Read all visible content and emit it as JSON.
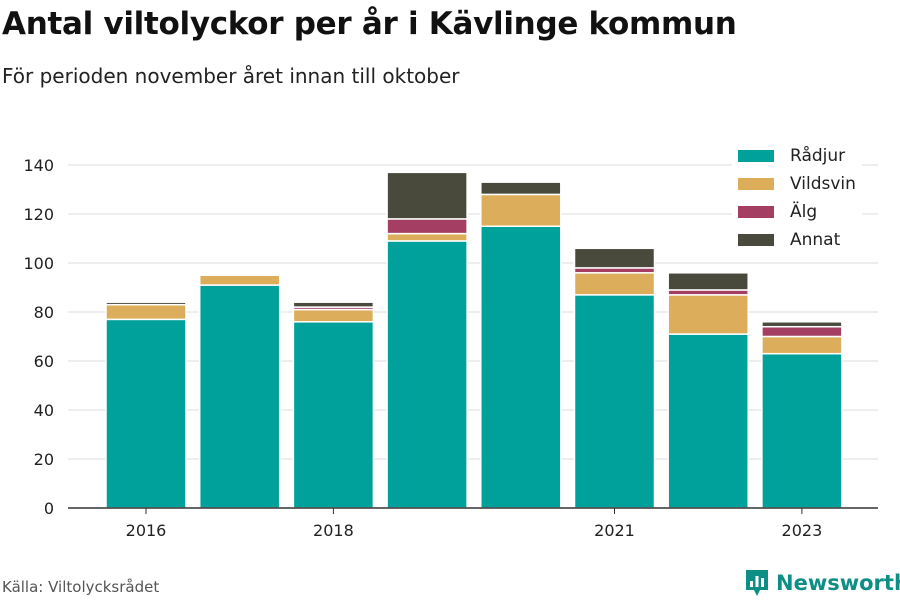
{
  "title": "Antal viltolyckor per år i Kävlinge kommun",
  "subtitle": "För perioden november året innan till oktober",
  "source": "Källa: Viltolycksrådet",
  "brand": "Newsworthy",
  "chart_data": {
    "type": "bar",
    "stacked": true,
    "categories": [
      "2016",
      "2017",
      "2018",
      "2019",
      "2020",
      "2021",
      "2022",
      "2023"
    ],
    "x_tick_labels": [
      "2016",
      "",
      "2018",
      "",
      "",
      "2021",
      "",
      "2023"
    ],
    "series": [
      {
        "name": "Rådjur",
        "color": "#00a19a",
        "values": [
          77,
          91,
          76,
          109,
          115,
          87,
          71,
          63
        ]
      },
      {
        "name": "Vildsvin",
        "color": "#dcae5b",
        "values": [
          6,
          4,
          5,
          3,
          13,
          9,
          16,
          7
        ]
      },
      {
        "name": "Älg",
        "color": "#a43e63",
        "values": [
          0,
          0,
          1,
          6,
          0,
          2,
          2,
          4
        ]
      },
      {
        "name": "Annat",
        "color": "#4a4a3c",
        "values": [
          1,
          0,
          2,
          19,
          5,
          8,
          7,
          2
        ]
      }
    ],
    "ylim": [
      0,
      140
    ],
    "yticks": [
      0,
      20,
      40,
      60,
      80,
      100,
      120,
      140
    ],
    "grid": true,
    "legend_position": "top-right"
  }
}
